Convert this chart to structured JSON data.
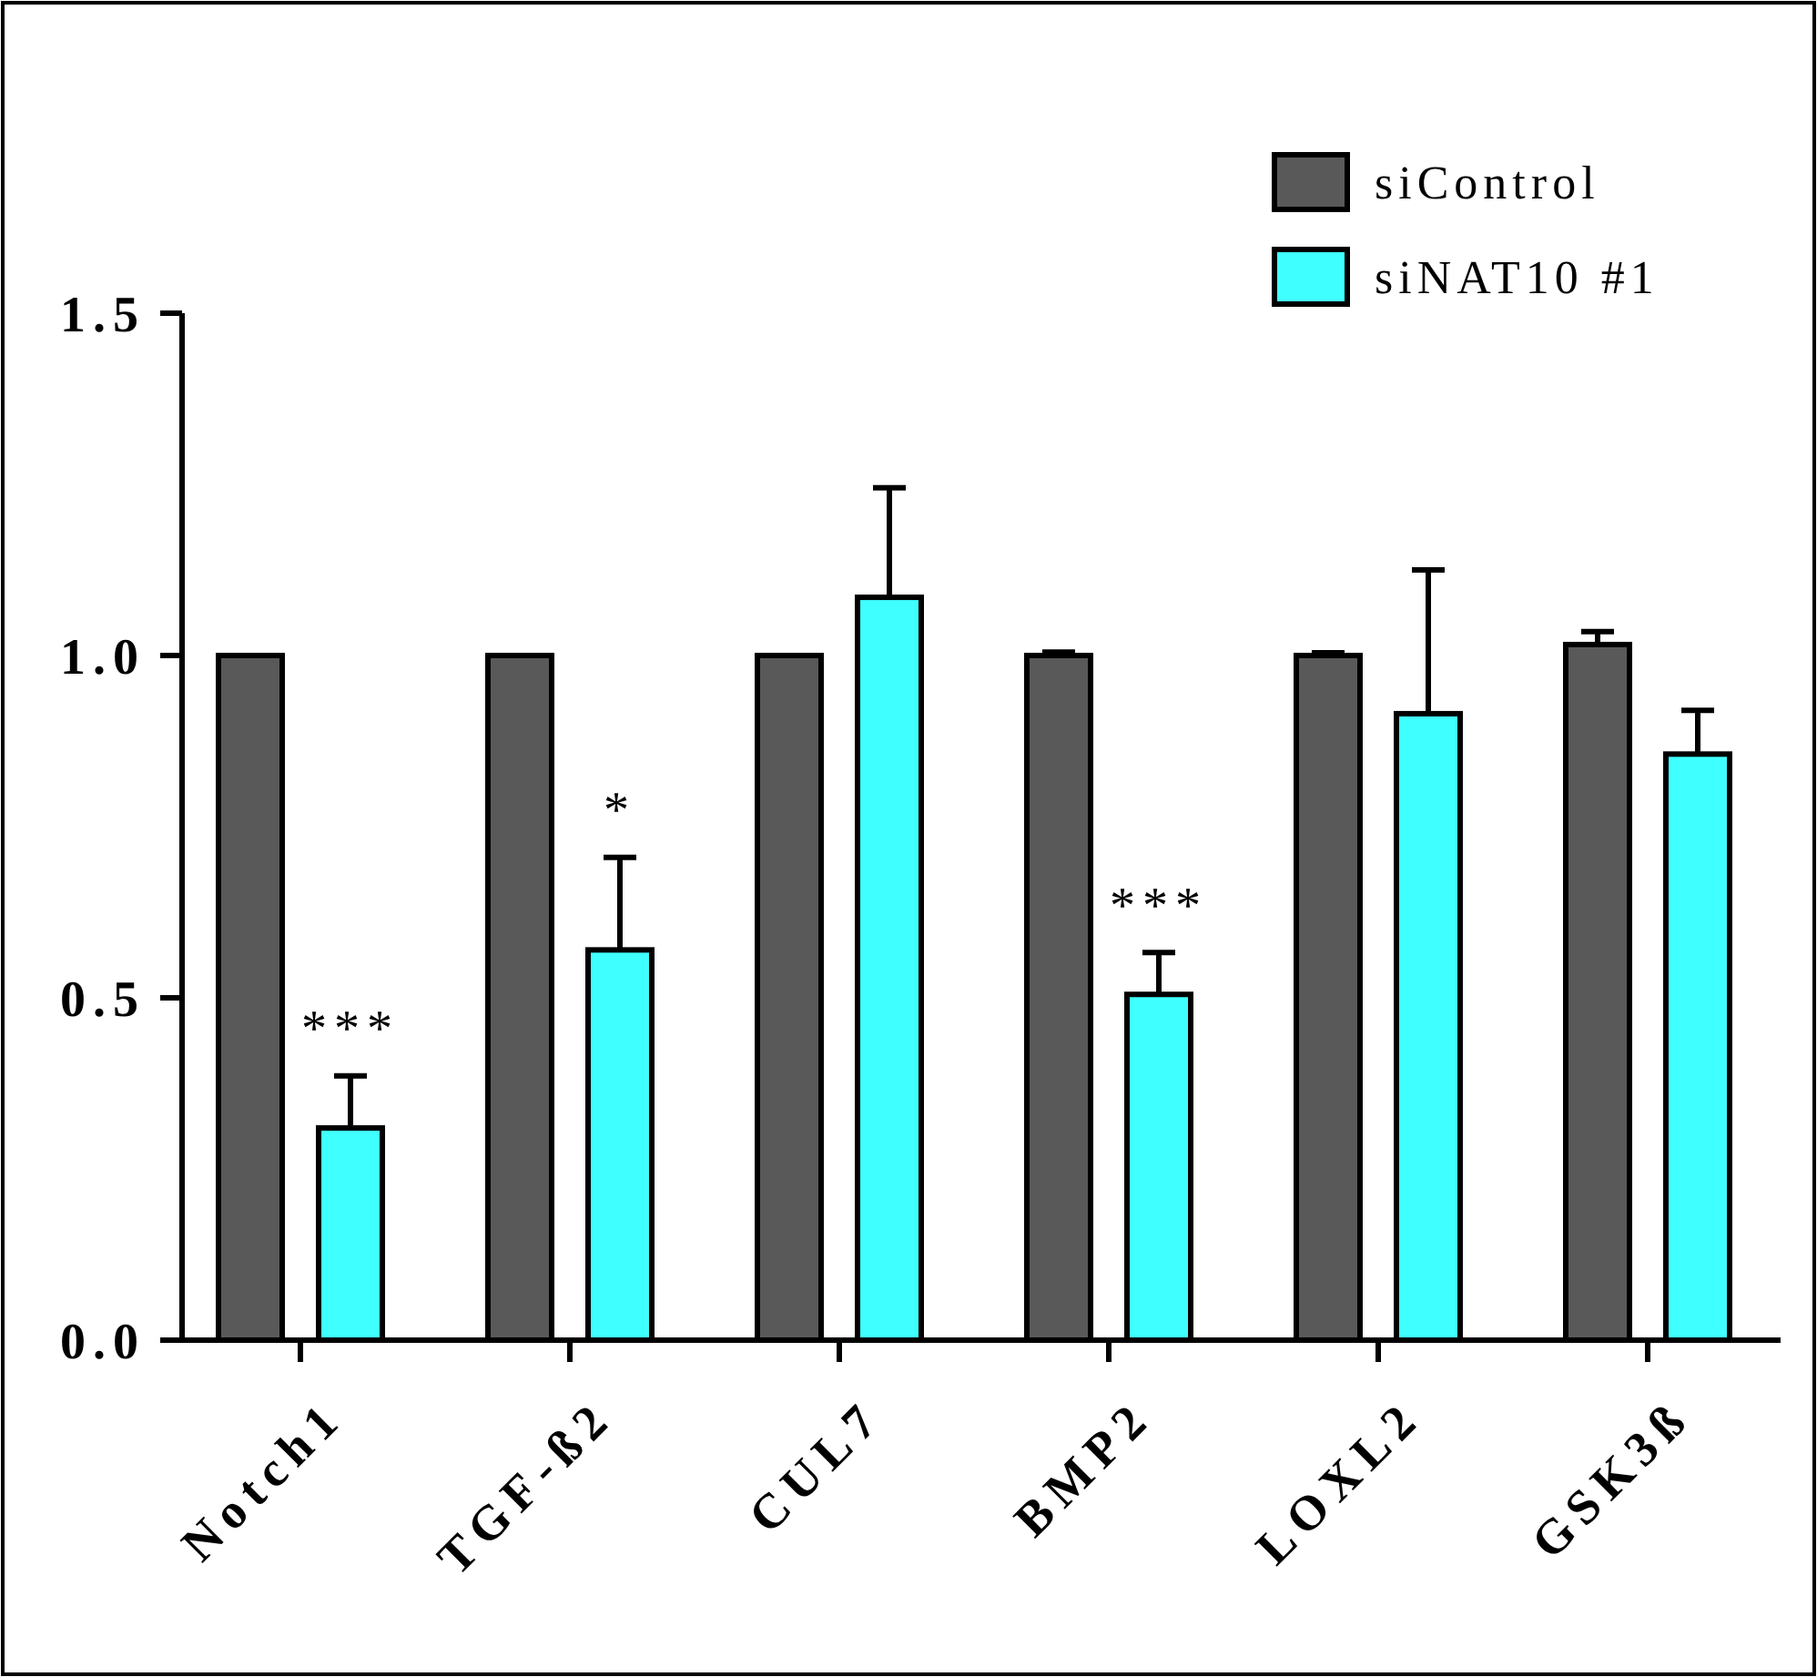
{
  "chart_data": {
    "type": "bar",
    "categories": [
      "Notch1",
      "TGF-ß2",
      "CUL7",
      "BMP2",
      "LOXL2",
      "GSK3ß"
    ],
    "series": [
      {
        "name": "siControl",
        "color": "#595959",
        "values": [
          1.0,
          1.0,
          1.0,
          1.0,
          1.0,
          1.016
        ],
        "errors": [
          null,
          null,
          null,
          [
            1.0,
            1.005
          ],
          [
            1.0,
            1.004
          ],
          [
            1.016,
            1.035
          ]
        ]
      },
      {
        "name": "siNAT10 #1",
        "color": "#40ffff",
        "values": [
          0.31,
          0.57,
          1.085,
          0.505,
          0.915,
          0.856
        ],
        "errors": [
          [
            0.31,
            0.386
          ],
          [
            0.57,
            0.705
          ],
          [
            1.085,
            1.245
          ],
          [
            0.505,
            0.566
          ],
          [
            0.915,
            1.125
          ],
          [
            0.856,
            0.92
          ]
        ]
      }
    ],
    "ylim": [
      0,
      1.5
    ],
    "yticks": [
      {
        "value": 0,
        "label": "0.0"
      },
      {
        "value": 0.5,
        "label": "0.5"
      },
      {
        "value": 1,
        "label": "1.0"
      },
      {
        "value": 1.5,
        "label": "1.5"
      }
    ],
    "annotations": [
      "***",
      "*",
      "***"
    ],
    "legend": "top right",
    "grid": false
  }
}
